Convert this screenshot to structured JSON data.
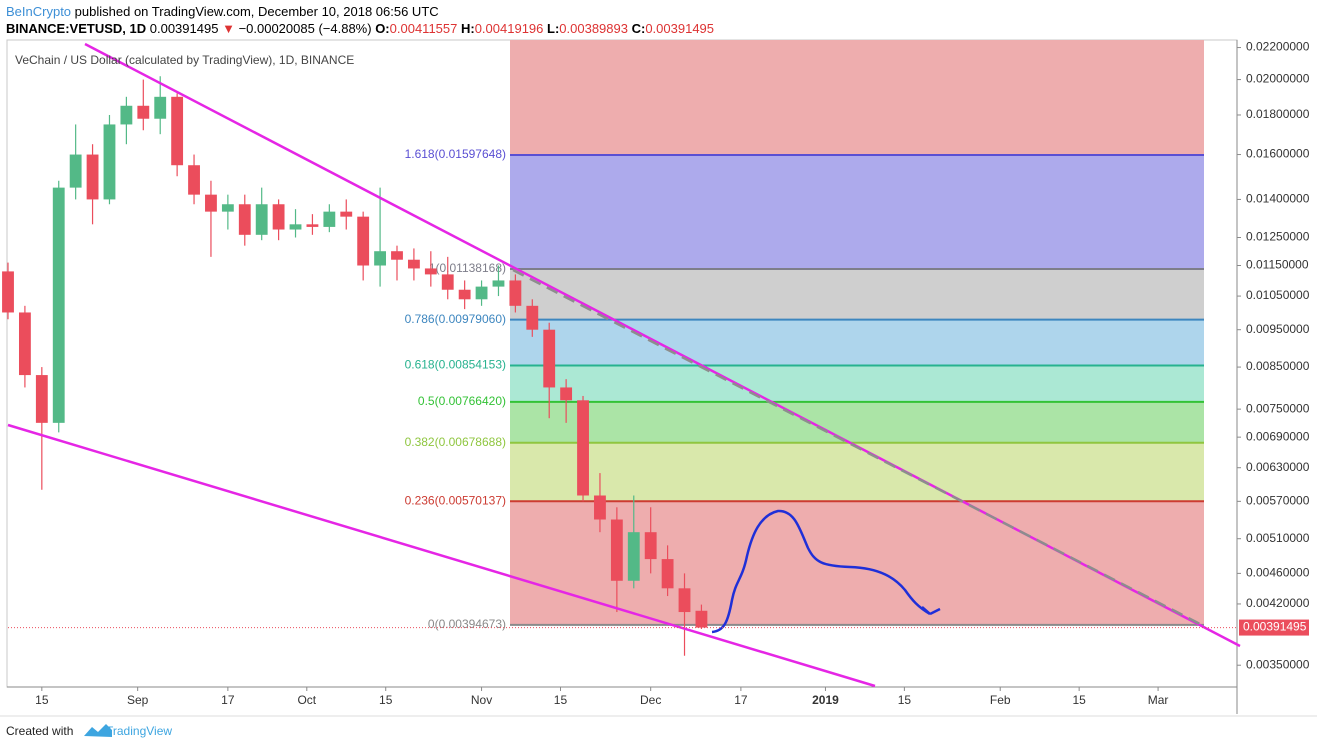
{
  "header": {
    "publisher": "BeInCrypto",
    "published": "published on TradingView.com, December 10, 2018 06:56 UTC",
    "symbol": "BINANCE:VETUSD, 1D",
    "arrow": "▼",
    "change": "−0.00020085 (−4.88%)",
    "o": "O:",
    "h": "H:",
    "l": "L:",
    "c": "C:"
  },
  "footer": {
    "created": "Created with",
    "brand": "TradingView"
  },
  "chart_data": {
    "type": "candlestick",
    "title": "VeChain / US Dollar (calculated by TradingView), 1D, BINANCE",
    "x": [
      "2018-08-09",
      "2018-08-12",
      "2018-08-15",
      "2018-08-18",
      "2018-08-21",
      "2018-08-24",
      "2018-08-27",
      "2018-08-30",
      "2018-09-02",
      "2018-09-05",
      "2018-09-08",
      "2018-09-11",
      "2018-09-14",
      "2018-09-17",
      "2018-09-20",
      "2018-09-23",
      "2018-09-26",
      "2018-09-29",
      "2018-10-02",
      "2018-10-05",
      "2018-10-08",
      "2018-10-11",
      "2018-10-14",
      "2018-10-17",
      "2018-10-20",
      "2018-10-23",
      "2018-10-26",
      "2018-10-29",
      "2018-11-01",
      "2018-11-04",
      "2018-11-07",
      "2018-11-10",
      "2018-11-13",
      "2018-11-16",
      "2018-11-19",
      "2018-11-22",
      "2018-11-25",
      "2018-11-28",
      "2018-12-01",
      "2018-12-04",
      "2018-12-07",
      "2018-12-10"
    ],
    "open": [
      0.0113,
      0.01,
      0.0083,
      0.0072,
      0.0145,
      0.016,
      0.014,
      0.0175,
      0.0185,
      0.0178,
      0.019,
      0.0155,
      0.0142,
      0.0135,
      0.0138,
      0.0126,
      0.0138,
      0.0128,
      0.013,
      0.0129,
      0.0135,
      0.0133,
      0.0115,
      0.012,
      0.0117,
      0.0114,
      0.0112,
      0.0107,
      0.0104,
      0.0108,
      0.011,
      0.0102,
      0.0095,
      0.008,
      0.0077,
      0.0058,
      0.0054,
      0.0045,
      0.0052,
      0.0048,
      0.0044,
      0.00411557
    ],
    "high": [
      0.0116,
      0.0102,
      0.0085,
      0.0148,
      0.0175,
      0.0165,
      0.018,
      0.019,
      0.02,
      0.0202,
      0.0192,
      0.016,
      0.0148,
      0.0142,
      0.0142,
      0.0145,
      0.014,
      0.0136,
      0.0134,
      0.0138,
      0.014,
      0.0135,
      0.0145,
      0.0122,
      0.0121,
      0.012,
      0.0118,
      0.011,
      0.011,
      0.0115,
      0.0112,
      0.0104,
      0.0097,
      0.0082,
      0.0078,
      0.0062,
      0.0056,
      0.0058,
      0.0056,
      0.005,
      0.0046,
      0.00419196
    ],
    "low": [
      0.0098,
      0.008,
      0.0059,
      0.007,
      0.014,
      0.013,
      0.0138,
      0.0165,
      0.0172,
      0.017,
      0.015,
      0.0138,
      0.0118,
      0.0128,
      0.0122,
      0.0124,
      0.0124,
      0.0125,
      0.0126,
      0.0127,
      0.0128,
      0.011,
      0.0108,
      0.011,
      0.011,
      0.0108,
      0.0104,
      0.0101,
      0.0102,
      0.0105,
      0.01,
      0.0093,
      0.0073,
      0.0072,
      0.0057,
      0.0052,
      0.0041,
      0.0044,
      0.0046,
      0.0043,
      0.0036,
      0.00389893
    ],
    "close": [
      0.01,
      0.0083,
      0.0072,
      0.0145,
      0.016,
      0.014,
      0.0175,
      0.0185,
      0.0178,
      0.019,
      0.0155,
      0.0142,
      0.0135,
      0.0138,
      0.0126,
      0.0138,
      0.0128,
      0.013,
      0.0129,
      0.0135,
      0.0133,
      0.0115,
      0.012,
      0.0117,
      0.0114,
      0.0112,
      0.0107,
      0.0104,
      0.0108,
      0.011,
      0.0102,
      0.0095,
      0.008,
      0.0077,
      0.0058,
      0.0054,
      0.0045,
      0.0052,
      0.0048,
      0.0044,
      0.0041,
      0.00391495
    ],
    "up_color": "#53b987",
    "down_color": "#eb4d5c",
    "xlim": [
      "2018-08-09",
      "2019-03-15"
    ],
    "xticks": [
      {
        "value": "2018-08-15",
        "label": "15"
      },
      {
        "value": "2018-09-01",
        "label": "Sep"
      },
      {
        "value": "2018-09-17",
        "label": "17"
      },
      {
        "value": "2018-10-01",
        "label": "Oct"
      },
      {
        "value": "2018-10-15",
        "label": "15"
      },
      {
        "value": "2018-11-01",
        "label": "Nov"
      },
      {
        "value": "2018-11-15",
        "label": "15"
      },
      {
        "value": "2018-12-01",
        "label": "Dec"
      },
      {
        "value": "2018-12-17",
        "label": "17"
      },
      {
        "value": "2019-01-01",
        "label": "2019"
      },
      {
        "value": "2019-01-15",
        "label": "15"
      },
      {
        "value": "2019-02-01",
        "label": "Feb"
      },
      {
        "value": "2019-02-15",
        "label": "15"
      },
      {
        "value": "2019-03-01",
        "label": "Mar"
      }
    ],
    "ylim": [
      0.00329,
      0.0225
    ],
    "yscale": "log",
    "yticks": [
      {
        "value": 0.022,
        "label": "0.02200000"
      },
      {
        "value": 0.02,
        "label": "0.02000000"
      },
      {
        "value": 0.018,
        "label": "0.01800000"
      },
      {
        "value": 0.016,
        "label": "0.01600000"
      },
      {
        "value": 0.014,
        "label": "0.01400000"
      },
      {
        "value": 0.0125,
        "label": "0.01250000"
      },
      {
        "value": 0.0115,
        "label": "0.01150000"
      },
      {
        "value": 0.0105,
        "label": "0.01050000"
      },
      {
        "value": 0.0095,
        "label": "0.00950000"
      },
      {
        "value": 0.0085,
        "label": "0.00850000"
      },
      {
        "value": 0.0075,
        "label": "0.00750000"
      },
      {
        "value": 0.0069,
        "label": "0.00690000"
      },
      {
        "value": 0.0063,
        "label": "0.00630000"
      },
      {
        "value": 0.0057,
        "label": "0.00570000"
      },
      {
        "value": 0.0051,
        "label": "0.00510000"
      },
      {
        "value": 0.0046,
        "label": "0.00460000"
      },
      {
        "value": 0.0042,
        "label": "0.00420000"
      },
      {
        "value": 0.0035,
        "label": "0.00350000"
      }
    ],
    "fib_top_fill": "#eeadae",
    "fib_levels": [
      {
        "level": 1.618,
        "price": 0.01597648,
        "label": "1.618(0.01597648)",
        "color": "#5a4fd3",
        "fill": "#adaaec"
      },
      {
        "level": 1,
        "price": 0.01138168,
        "label": "1(0.01138168)",
        "color": "#7e7e8a",
        "fill": "#cfcfcf"
      },
      {
        "level": 0.786,
        "price": 0.0097906,
        "label": "0.786(0.00979060)",
        "color": "#3d86bf",
        "fill": "#aed5ec"
      },
      {
        "level": 0.618,
        "price": 0.00854153,
        "label": "0.618(0.00854153)",
        "color": "#27b28f",
        "fill": "#abe8d4"
      },
      {
        "level": 0.5,
        "price": 0.0076642,
        "label": "0.5(0.00766420)",
        "color": "#33c236",
        "fill": "#abe4a6"
      },
      {
        "level": 0.382,
        "price": 0.00678688,
        "label": "0.382(0.00678688)",
        "color": "#8fc63f",
        "fill": "#d9e8ab"
      },
      {
        "level": 0.236,
        "price": 0.00570137,
        "label": "0.236(0.00570137)",
        "color": "#cc3b32",
        "fill": "#eeadae"
      },
      {
        "level": 0,
        "price": 0.00394673,
        "label": "0(0.00394673)",
        "color": "#8a8a8a",
        "fill": null
      }
    ]
  }
}
